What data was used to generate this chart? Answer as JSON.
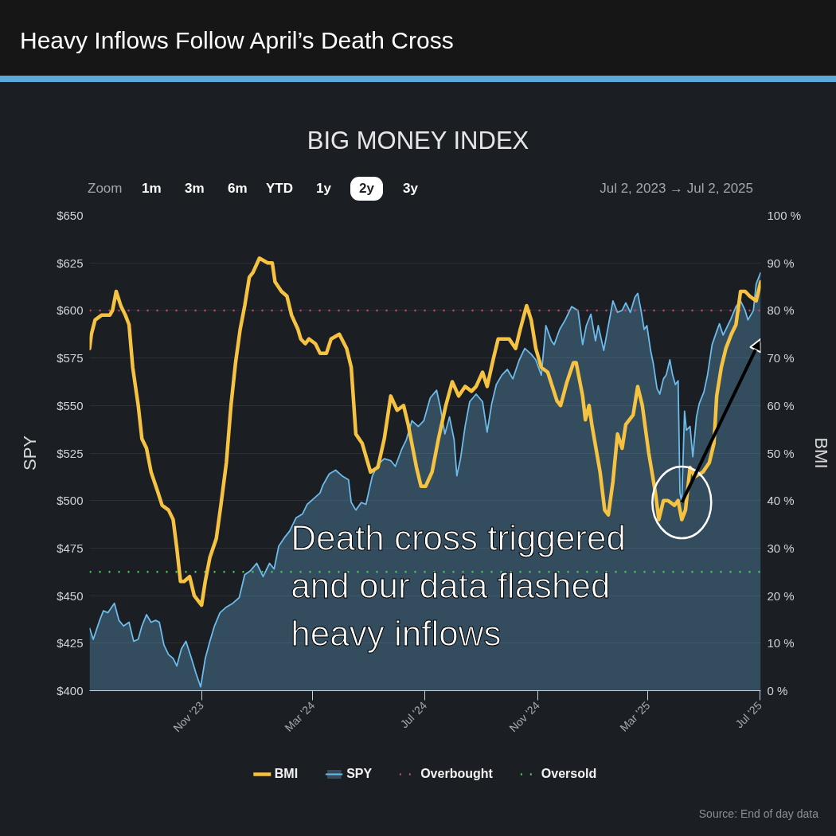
{
  "chart_data": {
    "type": "line",
    "title": "Heavy Inflows Follow April’s Death Cross",
    "subtitle": "BIG MONEY INDEX",
    "ylabel": "SPY",
    "y2label": "BMI",
    "xlim": [
      "2023-07-02",
      "2025-07-02"
    ],
    "xticks": [
      {
        "value": "2023-11-01",
        "label": "Nov '23"
      },
      {
        "value": "2024-03-01",
        "label": "Mar '24"
      },
      {
        "value": "2024-07-01",
        "label": "Jul '24"
      },
      {
        "value": "2024-11-01",
        "label": "Nov '24"
      },
      {
        "value": "2025-03-01",
        "label": "Mar '25"
      },
      {
        "value": "2025-07-01",
        "label": "Jul '25"
      }
    ],
    "ylim": [
      400,
      650
    ],
    "yticks": [
      {
        "value": 400,
        "label": "$400"
      },
      {
        "value": 425,
        "label": "$425"
      },
      {
        "value": 450,
        "label": "$450"
      },
      {
        "value": 475,
        "label": "$475"
      },
      {
        "value": 500,
        "label": "$500"
      },
      {
        "value": 525,
        "label": "$525"
      },
      {
        "value": 550,
        "label": "$550"
      },
      {
        "value": 575,
        "label": "$575"
      },
      {
        "value": 600,
        "label": "$600"
      },
      {
        "value": 625,
        "label": "$625"
      },
      {
        "value": 650,
        "label": "$650"
      }
    ],
    "y2lim": [
      0,
      100
    ],
    "y2ticks": [
      {
        "value": 0,
        "label": "0 %"
      },
      {
        "value": 10,
        "label": "10 %"
      },
      {
        "value": 20,
        "label": "20 %"
      },
      {
        "value": 30,
        "label": "30 %"
      },
      {
        "value": 40,
        "label": "40 %"
      },
      {
        "value": 50,
        "label": "50 %"
      },
      {
        "value": 60,
        "label": "60 %"
      },
      {
        "value": 70,
        "label": "70 %"
      },
      {
        "value": 80,
        "label": "80 %"
      },
      {
        "value": 90,
        "label": "90 %"
      },
      {
        "value": 100,
        "label": "100 %"
      }
    ],
    "grid": "y",
    "legend": "bottom",
    "series": [
      {
        "name": "BMI",
        "axis": "y2",
        "color": "#f5c242",
        "x": [
          "2023-07-02",
          "2023-07-04",
          "2023-07-08",
          "2023-07-15",
          "2023-07-24",
          "2023-07-27",
          "2023-07-31",
          "2023-08-05",
          "2023-08-10",
          "2023-08-14",
          "2023-08-18",
          "2023-08-24",
          "2023-08-28",
          "2023-09-02",
          "2023-09-07",
          "2023-09-14",
          "2023-09-19",
          "2023-09-26",
          "2023-10-01",
          "2023-10-05",
          "2023-10-09",
          "2023-10-13",
          "2023-10-19",
          "2023-10-24",
          "2023-11-01",
          "2023-11-05",
          "2023-11-10",
          "2023-11-17",
          "2023-11-22",
          "2023-11-28",
          "2023-12-03",
          "2023-12-08",
          "2023-12-13",
          "2023-12-18",
          "2023-12-23",
          "2023-12-27",
          "2024-01-03",
          "2024-01-12",
          "2024-01-17",
          "2024-01-20",
          "2024-01-27",
          "2024-02-02",
          "2024-02-07",
          "2024-02-14",
          "2024-02-17",
          "2024-02-22",
          "2024-02-26",
          "2024-03-04",
          "2024-03-09",
          "2024-03-16",
          "2024-03-21",
          "2024-03-30",
          "2024-04-07",
          "2024-04-12",
          "2024-04-17",
          "2024-04-24",
          "2024-05-03",
          "2024-05-11",
          "2024-05-18",
          "2024-05-25",
          "2024-06-01",
          "2024-06-08",
          "2024-06-13",
          "2024-06-22",
          "2024-06-27",
          "2024-07-02",
          "2024-07-09",
          "2024-07-16",
          "2024-07-24",
          "2024-07-31",
          "2024-08-07",
          "2024-08-14",
          "2024-08-21",
          "2024-08-26",
          "2024-09-02",
          "2024-09-07",
          "2024-09-14",
          "2024-09-19",
          "2024-09-26",
          "2024-10-01",
          "2024-10-08",
          "2024-10-13",
          "2024-10-20",
          "2024-10-25",
          "2024-10-30",
          "2024-11-05",
          "2024-11-12",
          "2024-11-22",
          "2024-11-26",
          "2024-12-03",
          "2024-12-10",
          "2024-12-13",
          "2024-12-20",
          "2024-12-23",
          "2024-12-27",
          "2024-12-30",
          "2025-01-08",
          "2025-01-13",
          "2025-01-17",
          "2025-01-22",
          "2025-01-27",
          "2025-02-01",
          "2025-02-05",
          "2025-02-13",
          "2025-02-18",
          "2025-02-23",
          "2025-03-02",
          "2025-03-09",
          "2025-03-13",
          "2025-03-18",
          "2025-03-23",
          "2025-03-30",
          "2025-04-03",
          "2025-04-07",
          "2025-04-11",
          "2025-04-16",
          "2025-04-21",
          "2025-04-30",
          "2025-05-07",
          "2025-05-12",
          "2025-05-15",
          "2025-05-20",
          "2025-05-25",
          "2025-05-31",
          "2025-06-05",
          "2025-06-10",
          "2025-06-15",
          "2025-06-20",
          "2025-06-27",
          "2025-07-02"
        ],
        "values": [
          72,
          75,
          78,
          79,
          79,
          80,
          84,
          81,
          79,
          77,
          68,
          60,
          53,
          51,
          46,
          42,
          39,
          38,
          36,
          30,
          23,
          23,
          24,
          20,
          18,
          23,
          28,
          32,
          39,
          48,
          60,
          69,
          76,
          81,
          87,
          88,
          91,
          90,
          90,
          86,
          84,
          83,
          79,
          76,
          74,
          73,
          74,
          73,
          71,
          71,
          74,
          75,
          72,
          68,
          54,
          52,
          46,
          47,
          53,
          62,
          59,
          60,
          56,
          47,
          43,
          43,
          46,
          53,
          60,
          65,
          62,
          64,
          63,
          64,
          67,
          64,
          70,
          74,
          74,
          74,
          72,
          76,
          81,
          78,
          72,
          68,
          67,
          61,
          60,
          65,
          69,
          69,
          62,
          57,
          60,
          56,
          46,
          38,
          37,
          44,
          54,
          51,
          56,
          58,
          64,
          60,
          50,
          42,
          36,
          40,
          40,
          39,
          40,
          36,
          38,
          47,
          45,
          46,
          48,
          52,
          62,
          68,
          72,
          75,
          77,
          84,
          84,
          83,
          82,
          86
        ]
      },
      {
        "name": "SPY",
        "type": "area",
        "color": "#6cbbea",
        "x": [
          "2023-07-02",
          "2023-07-06",
          "2023-07-13",
          "2023-07-17",
          "2023-07-22",
          "2023-07-29",
          "2023-08-03",
          "2023-08-08",
          "2023-08-14",
          "2023-08-19",
          "2023-08-24",
          "2023-08-28",
          "2023-09-02",
          "2023-09-07",
          "2023-09-12",
          "2023-09-16",
          "2023-09-21",
          "2023-09-26",
          "2023-10-01",
          "2023-10-05",
          "2023-10-10",
          "2023-10-15",
          "2023-10-21",
          "2023-10-26",
          "2023-10-31",
          "2023-11-05",
          "2023-11-10",
          "2023-11-15",
          "2023-11-21",
          "2023-11-28",
          "2023-12-05",
          "2023-12-12",
          "2023-12-18",
          "2023-12-24",
          "2023-12-31",
          "2024-01-07",
          "2024-01-14",
          "2024-01-19",
          "2024-01-24",
          "2024-01-31",
          "2024-02-05",
          "2024-02-12",
          "2024-02-19",
          "2024-02-24",
          "2024-03-02",
          "2024-03-09",
          "2024-03-12",
          "2024-03-19",
          "2024-03-26",
          "2024-04-02",
          "2024-04-09",
          "2024-04-12",
          "2024-04-17",
          "2024-04-23",
          "2024-04-28",
          "2024-05-05",
          "2024-05-11",
          "2024-05-18",
          "2024-05-25",
          "2024-05-30",
          "2024-06-06",
          "2024-06-11",
          "2024-06-17",
          "2024-06-24",
          "2024-06-30",
          "2024-07-07",
          "2024-07-14",
          "2024-07-18",
          "2024-07-23",
          "2024-07-28",
          "2024-08-02",
          "2024-08-05",
          "2024-08-09",
          "2024-08-14",
          "2024-08-19",
          "2024-08-26",
          "2024-09-02",
          "2024-09-07",
          "2024-09-12",
          "2024-09-17",
          "2024-09-23",
          "2024-09-29",
          "2024-10-05",
          "2024-10-12",
          "2024-10-18",
          "2024-10-25",
          "2024-10-30",
          "2024-11-05",
          "2024-11-10",
          "2024-11-16",
          "2024-11-19",
          "2024-11-25",
          "2024-12-01",
          "2024-12-08",
          "2024-12-15",
          "2024-12-20",
          "2024-12-24",
          "2024-12-29",
          "2025-01-03",
          "2025-01-06",
          "2025-01-12",
          "2025-01-17",
          "2025-01-22",
          "2025-01-27",
          "2025-02-01",
          "2025-02-05",
          "2025-02-10",
          "2025-02-15",
          "2025-02-18",
          "2025-02-22",
          "2025-02-25",
          "2025-02-28",
          "2025-03-04",
          "2025-03-07",
          "2025-03-11",
          "2025-03-14",
          "2025-03-18",
          "2025-03-21",
          "2025-03-25",
          "2025-03-28",
          "2025-03-31",
          "2025-04-03",
          "2025-04-05",
          "2025-04-07",
          "2025-04-10",
          "2025-04-12",
          "2025-04-16",
          "2025-04-19",
          "2025-04-23",
          "2025-04-26",
          "2025-05-01",
          "2025-05-05",
          "2025-05-10",
          "2025-05-15",
          "2025-05-18",
          "2025-05-22",
          "2025-05-27",
          "2025-05-30",
          "2025-06-05",
          "2025-06-10",
          "2025-06-15",
          "2025-06-18",
          "2025-06-24",
          "2025-06-27",
          "2025-07-02"
        ],
        "values": [
          433,
          427,
          437,
          442,
          441,
          446,
          437,
          434,
          436,
          426,
          427,
          434,
          440,
          436,
          437,
          436,
          424,
          419,
          417,
          413,
          422,
          426,
          417,
          409,
          402,
          417,
          426,
          434,
          441,
          444,
          446,
          449,
          461,
          463,
          467,
          460,
          467,
          464,
          476,
          481,
          484,
          491,
          493,
          498,
          501,
          504,
          508,
          514,
          516,
          513,
          511,
          499,
          495,
          499,
          498,
          513,
          519,
          522,
          521,
          518,
          527,
          532,
          542,
          539,
          542,
          554,
          558,
          549,
          535,
          544,
          532,
          513,
          522,
          539,
          552,
          556,
          552,
          536,
          551,
          561,
          566,
          569,
          564,
          574,
          580,
          577,
          574,
          566,
          592,
          584,
          582,
          590,
          595,
          602,
          600,
          582,
          592,
          598,
          584,
          592,
          579,
          592,
          605,
          599,
          600,
          604,
          599,
          607,
          609,
          599,
          590,
          592,
          579,
          572,
          559,
          556,
          564,
          566,
          574,
          566,
          561,
          563,
          504,
          499,
          547,
          537,
          539,
          523,
          544,
          551,
          557,
          566,
          582,
          589,
          593,
          587,
          592,
          595,
          602,
          605,
          600,
          595,
          600,
          614,
          620
        ]
      }
    ],
    "ref_lines": [
      {
        "axis": "y2",
        "value": 80,
        "label": "Overbought",
        "color": "#c8456e",
        "line_style": "dotted"
      },
      {
        "axis": "y2",
        "value": 25,
        "label": "Oversold",
        "color": "#3fd24f",
        "line_style": "dotted"
      }
    ],
    "annotations": [
      {
        "text": "Death cross triggered and our data flashed heavy inflows",
        "x": "2025-04-07",
        "y": 499
      },
      "Zoom",
      "1m",
      "3m",
      "6m",
      "YTD",
      "1y",
      "2y",
      "3y",
      "Jul 2, 2023 → Jul 2, 2025",
      "Source: End of day data"
    ]
  }
}
